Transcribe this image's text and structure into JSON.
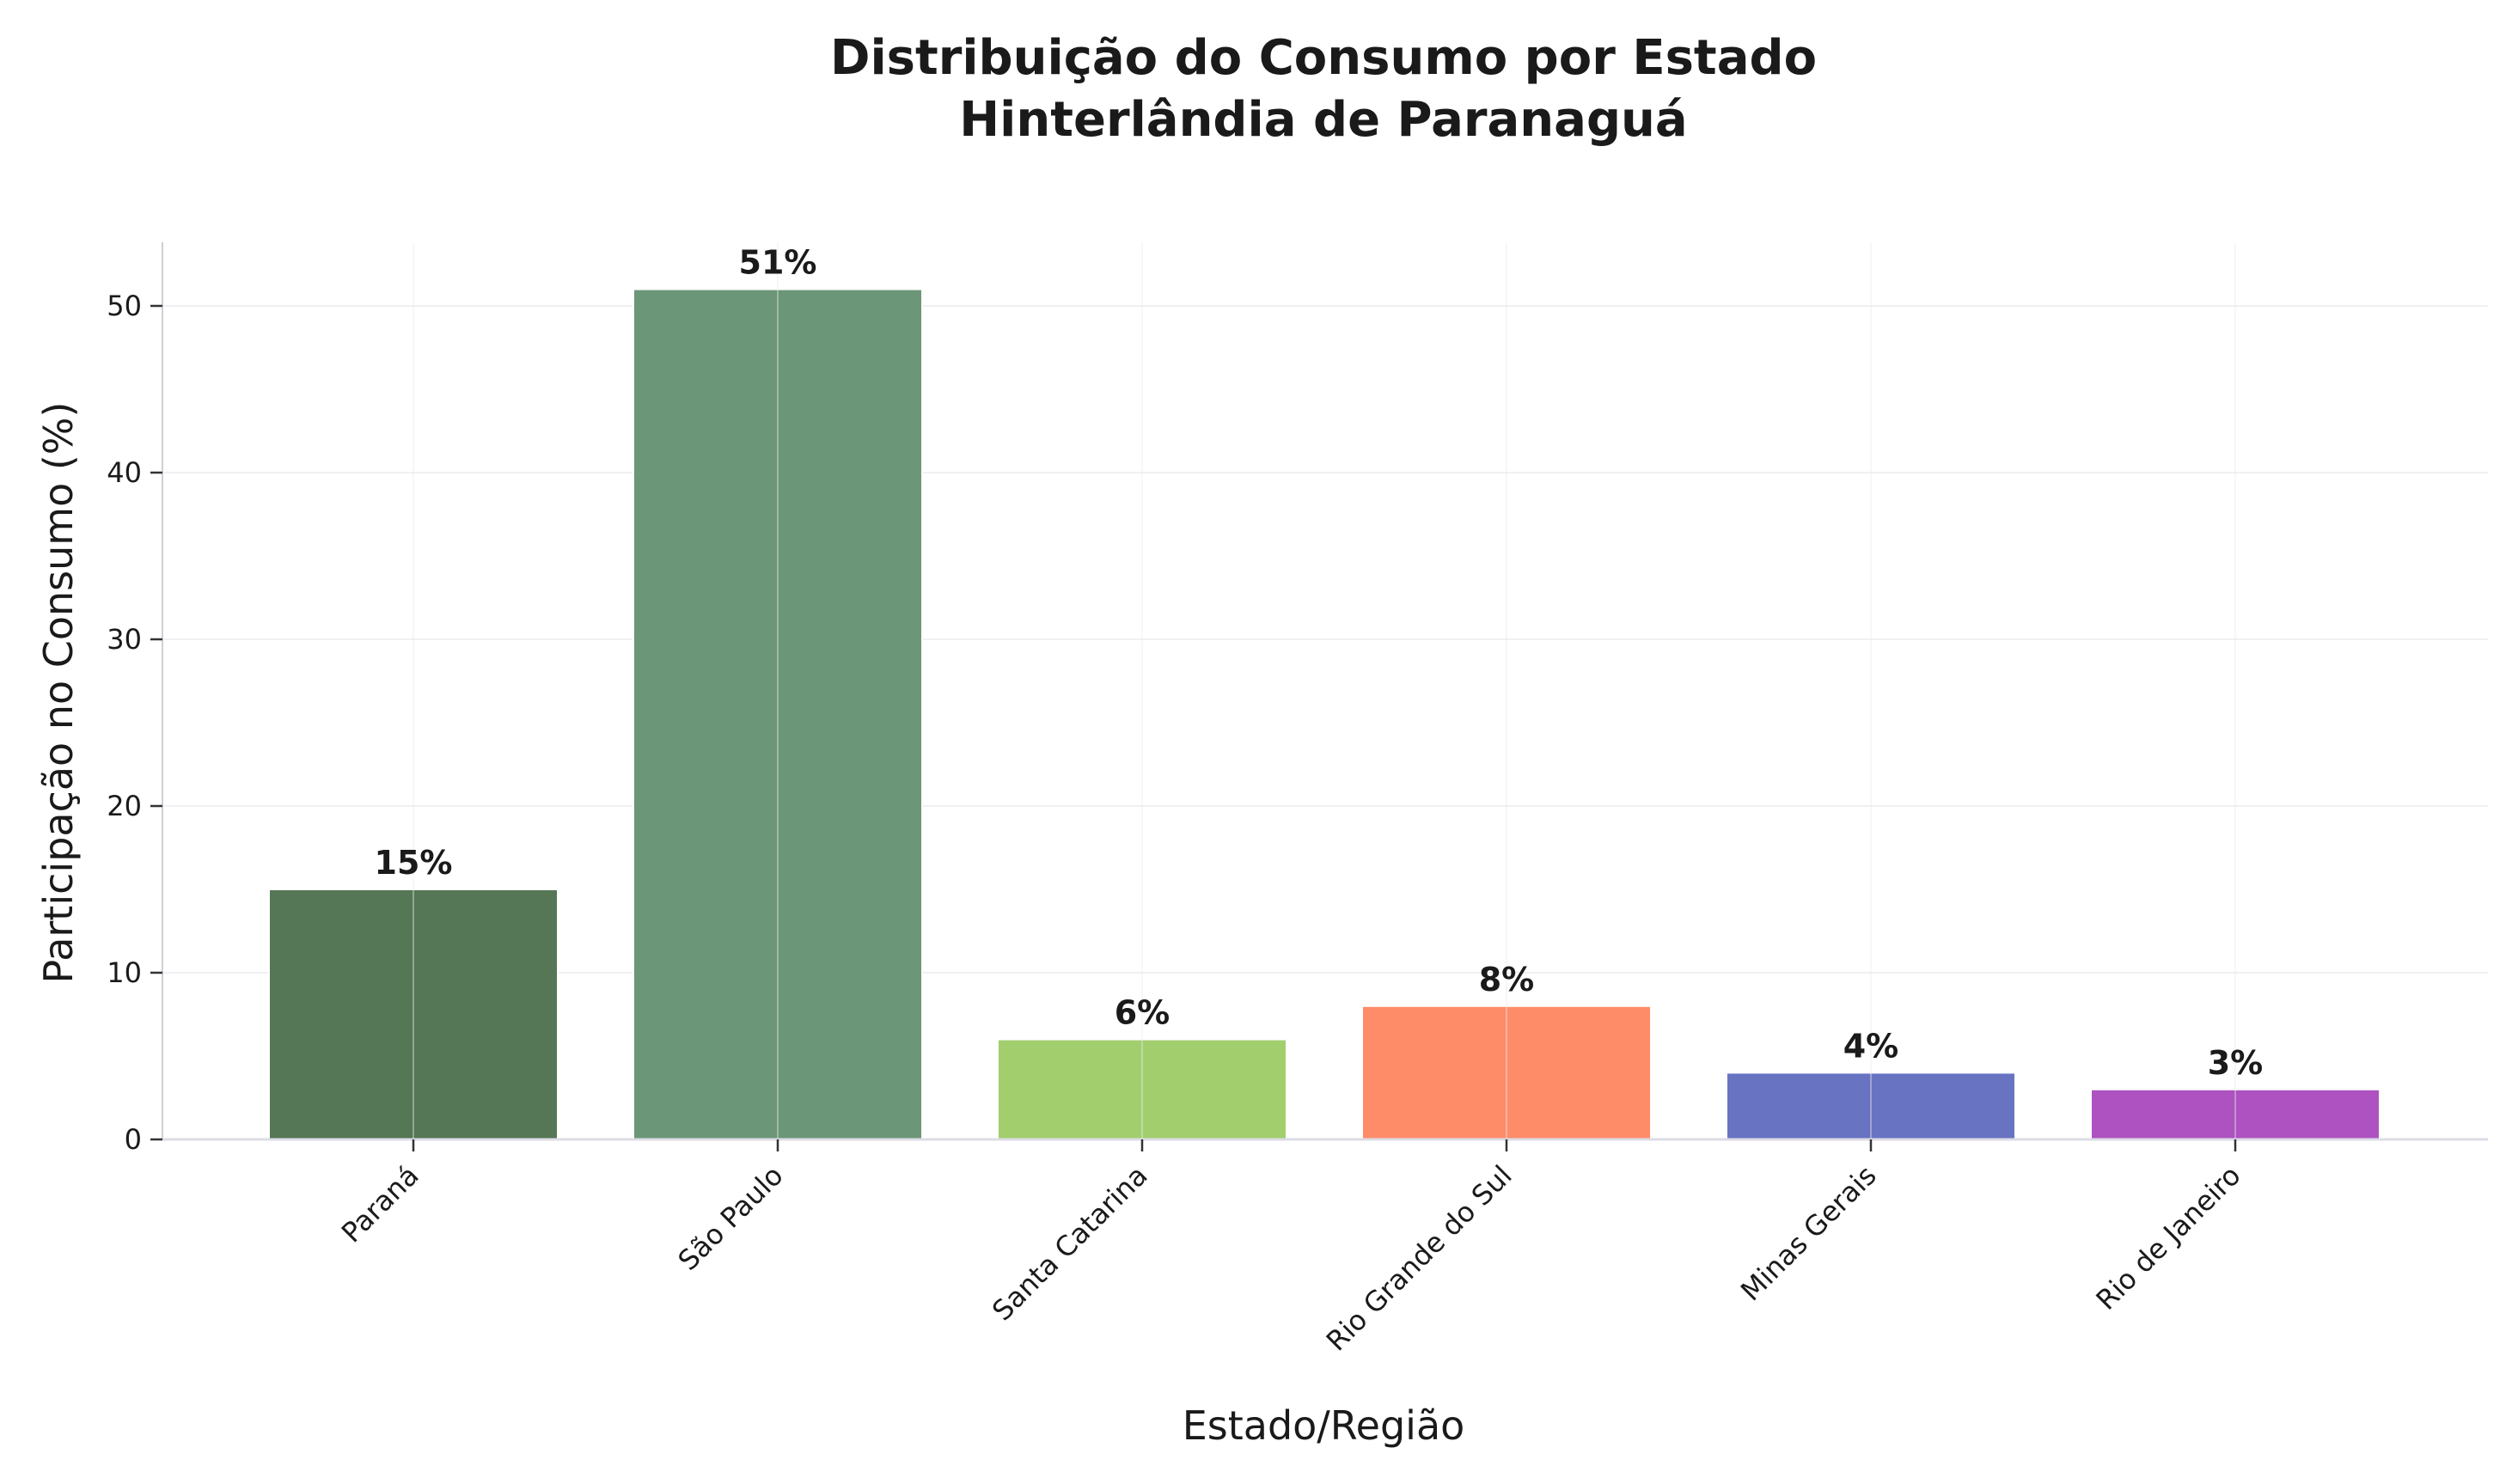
{
  "chart_data": {
    "type": "bar",
    "title_line1": "Distribuição do Consumo por Estado",
    "title_line2": "Hinterlândia de Paranaguá",
    "xlabel": "Estado/Região",
    "ylabel": "Participação no Consumo (%)",
    "categories": [
      "Paraná",
      "São Paulo",
      "Santa Catarina",
      "Rio Grande do Sul",
      "Minas Gerais",
      "Rio de Janeiro"
    ],
    "values": [
      15,
      51,
      6,
      8,
      4,
      3
    ],
    "value_labels": [
      "15%",
      "51%",
      "6%",
      "8%",
      "4%",
      "3%"
    ],
    "colors": [
      "#557755",
      "#6b9677",
      "#a2ce6e",
      "#ff8c69",
      "#6874c2",
      "#ad52c0"
    ],
    "ylim": [
      0,
      53.5
    ],
    "yticks": [
      0,
      10,
      20,
      30,
      40,
      50
    ],
    "grid": true,
    "legend": "none"
  }
}
